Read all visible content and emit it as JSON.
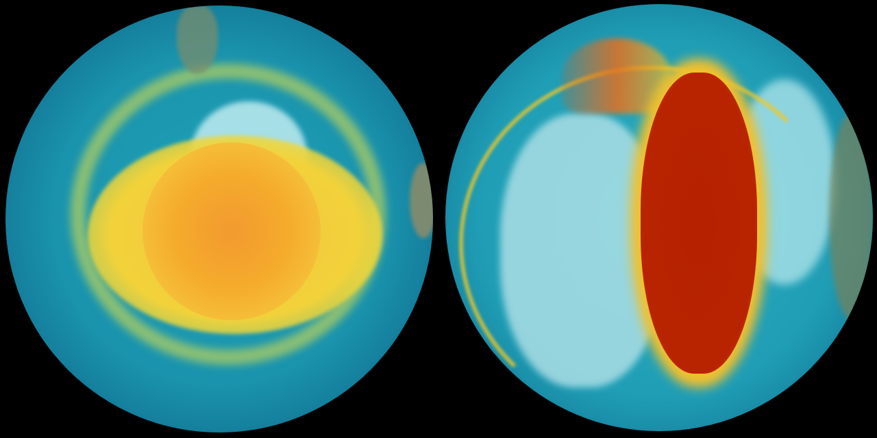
{
  "globes": [
    {
      "view": "south-polar",
      "colors": {
        "ocean": "#1a93ad",
        "ring": "#e8e03a",
        "core": "#f5a623",
        "land": "#6f8a6a"
      }
    },
    {
      "view": "north-polar",
      "colors": {
        "ocean": "#1f9db5",
        "ice": "#bfe9ef",
        "band": "#f2c62a",
        "core": "#b82200"
      }
    }
  ]
}
